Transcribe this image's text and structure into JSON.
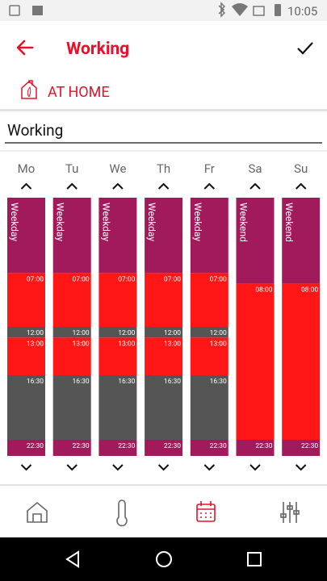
{
  "status_bar": {
    "time": "10:05"
  },
  "header": {
    "title": "Working"
  },
  "mode": {
    "label": "AT HOME"
  },
  "schedule": {
    "name": "Working",
    "days": [
      {
        "label": "Mo",
        "type": "Weekday",
        "times": [
          "07:00",
          "12:00",
          "13:00",
          "16:30",
          "22:30"
        ]
      },
      {
        "label": "Tu",
        "type": "Weekday",
        "times": [
          "07:00",
          "12:00",
          "13:00",
          "16:30",
          "22:30"
        ]
      },
      {
        "label": "We",
        "type": "Weekday",
        "times": [
          "07:00",
          "12:00",
          "13:00",
          "16:30",
          "22:30"
        ]
      },
      {
        "label": "Th",
        "type": "Weekday",
        "times": [
          "07:00",
          "12:00",
          "13:00",
          "16:30",
          "22:30"
        ]
      },
      {
        "label": "Fr",
        "type": "Weekday",
        "times": [
          "07:00",
          "12:00",
          "13:00",
          "16:30",
          "22:30"
        ]
      },
      {
        "label": "Sa",
        "type": "Weekend",
        "times": [
          "08:00",
          "22:30"
        ]
      },
      {
        "label": "Su",
        "type": "Weekend",
        "times": [
          "08:00",
          "22:30"
        ]
      }
    ]
  }
}
